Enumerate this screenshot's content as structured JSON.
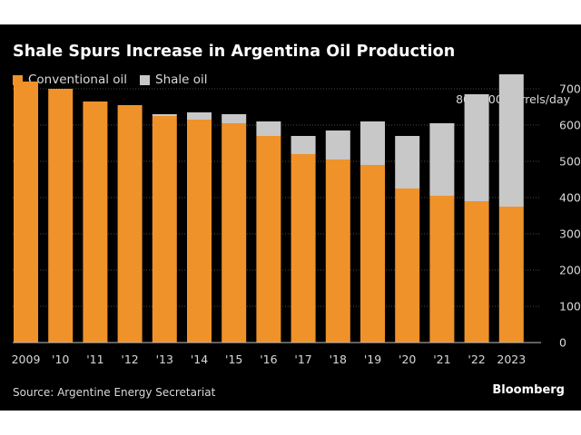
{
  "colors": {
    "conventional": "#ef922a",
    "shale": "#c8c8c8",
    "background": "#000000",
    "grid": "#4a4a4a",
    "text": "#d9d9d9"
  },
  "chart_data": {
    "type": "bar",
    "stacked": true,
    "title": "Shale Spurs Increase in Argentina Oil Production",
    "unit_label": "800,000 barrels/day",
    "categories": [
      "2009",
      "'10",
      "'11",
      "'12",
      "'13",
      "'14",
      "'15",
      "'16",
      "'17",
      "'18",
      "'19",
      "'20",
      "'21",
      "'22",
      "2023"
    ],
    "series": [
      {
        "name": "Conventional oil",
        "color": "#ef922a",
        "values": [
          720,
          700,
          665,
          655,
          625,
          615,
          605,
          570,
          520,
          505,
          490,
          425,
          405,
          390,
          375
        ]
      },
      {
        "name": "Shale oil",
        "color": "#c8c8c8",
        "values": [
          0,
          0,
          0,
          0,
          5,
          20,
          25,
          40,
          50,
          80,
          120,
          145,
          200,
          295,
          365
        ]
      }
    ],
    "yticks": [
      0,
      100,
      200,
      300,
      400,
      500,
      600,
      700
    ],
    "ylim": [
      0,
      800
    ],
    "y_axis_side": "right",
    "grid": true,
    "legend_position": "top-left"
  },
  "source": "Source: Argentine Energy Secretariat",
  "brand": "Bloomberg"
}
